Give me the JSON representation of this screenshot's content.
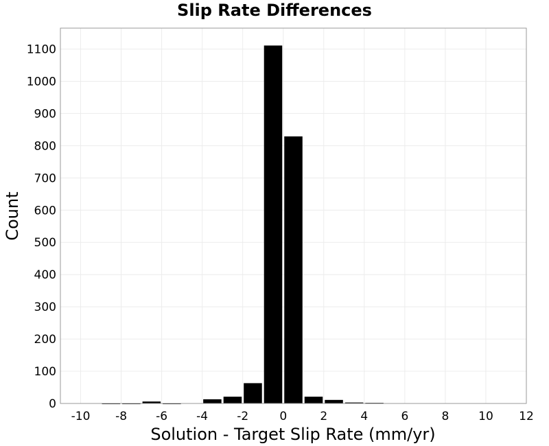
{
  "chart_data": {
    "type": "bar",
    "title": "Slip Rate Differences",
    "xlabel": "Solution - Target Slip Rate (mm/yr)",
    "ylabel": "Count",
    "xlim": [
      -11,
      12
    ],
    "ylim": [
      0,
      1165
    ],
    "x_ticks": [
      "-10",
      "-8",
      "-6",
      "-4",
      "-2",
      "0",
      "2",
      "4",
      "6",
      "8",
      "10",
      "12"
    ],
    "y_ticks": [
      "0",
      "100",
      "200",
      "300",
      "400",
      "500",
      "600",
      "700",
      "800",
      "900",
      "1000",
      "1100"
    ],
    "grid": true,
    "bin_width": 1,
    "bins": [
      {
        "x_start": -10,
        "x_end": -9,
        "count": 0
      },
      {
        "x_start": -9,
        "x_end": -8,
        "count": 1
      },
      {
        "x_start": -8,
        "x_end": -7,
        "count": 1
      },
      {
        "x_start": -7,
        "x_end": -6,
        "count": 6
      },
      {
        "x_start": -6,
        "x_end": -5,
        "count": 1
      },
      {
        "x_start": -5,
        "x_end": -4,
        "count": 0
      },
      {
        "x_start": -4,
        "x_end": -3,
        "count": 13
      },
      {
        "x_start": -3,
        "x_end": -2,
        "count": 21
      },
      {
        "x_start": -2,
        "x_end": -1,
        "count": 63
      },
      {
        "x_start": -1,
        "x_end": 0,
        "count": 1111
      },
      {
        "x_start": 0,
        "x_end": 1,
        "count": 829
      },
      {
        "x_start": 1,
        "x_end": 2,
        "count": 21
      },
      {
        "x_start": 2,
        "x_end": 3,
        "count": 11
      },
      {
        "x_start": 3,
        "x_end": 4,
        "count": 3
      },
      {
        "x_start": 4,
        "x_end": 5,
        "count": 2
      },
      {
        "x_start": 5,
        "x_end": 6,
        "count": 0
      },
      {
        "x_start": 6,
        "x_end": 7,
        "count": 0
      },
      {
        "x_start": 7,
        "x_end": 8,
        "count": 0
      },
      {
        "x_start": 8,
        "x_end": 9,
        "count": 0
      },
      {
        "x_start": 9,
        "x_end": 10,
        "count": 0
      },
      {
        "x_start": 10,
        "x_end": 11,
        "count": 0
      }
    ],
    "colors": {
      "bar": "#000000",
      "bar_edge": "#ffffff",
      "grid": "#ececec",
      "frame": "#9a9a9a"
    }
  }
}
